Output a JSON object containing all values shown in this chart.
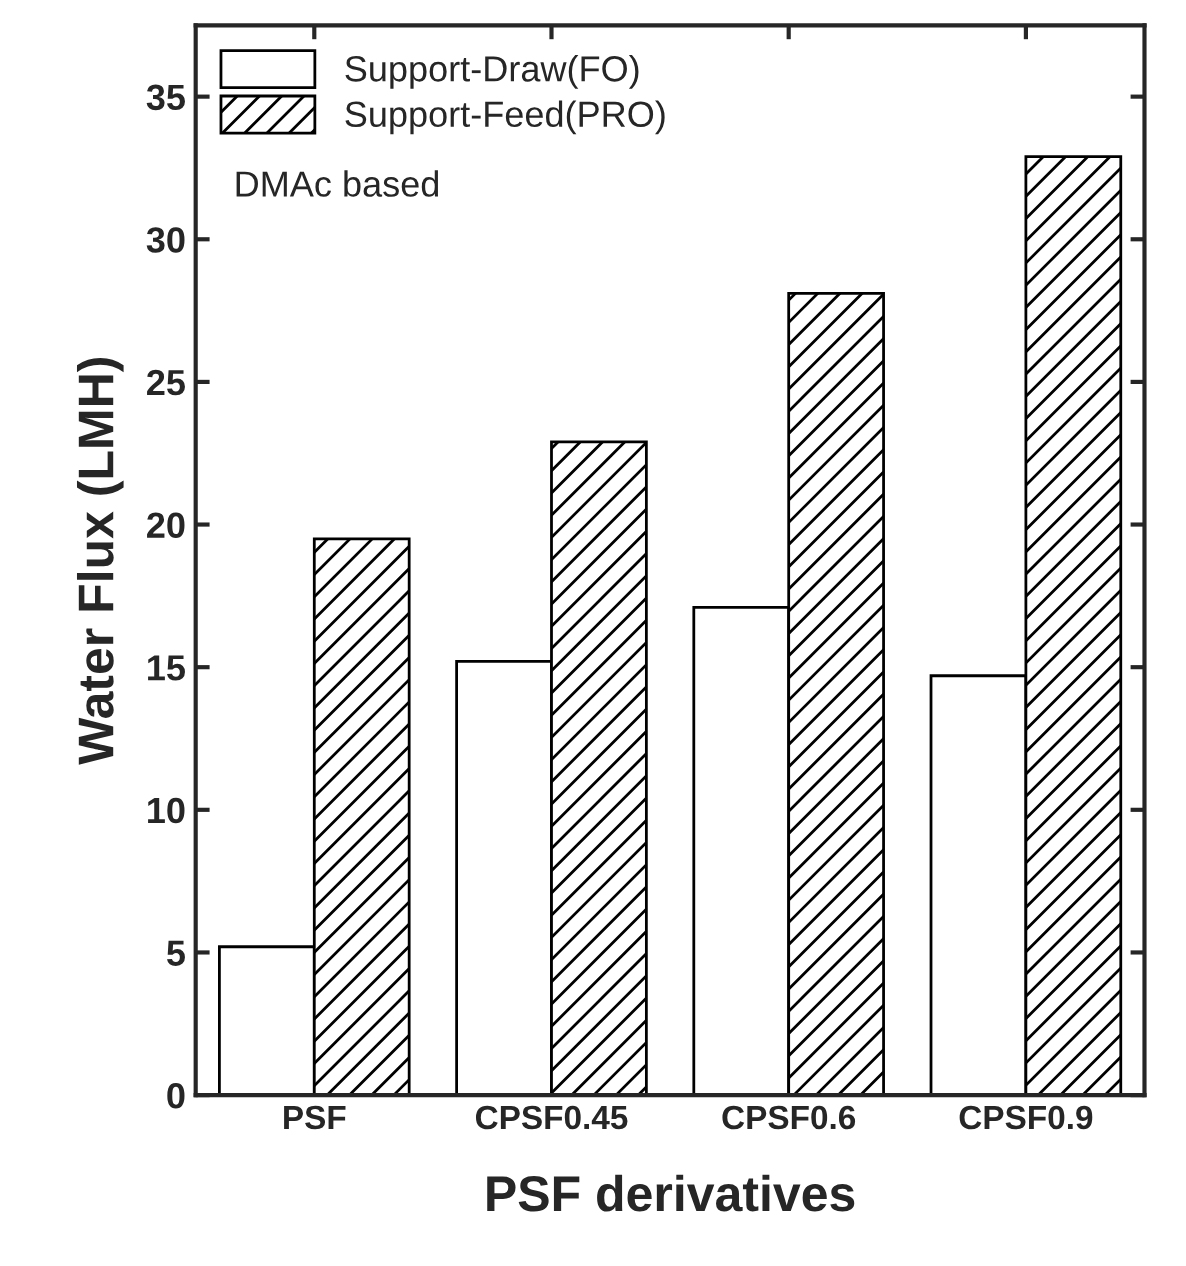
{
  "chart_data": {
    "type": "bar",
    "xlabel": "PSF derivatives",
    "ylabel": "Water Flux (LMH)",
    "categories": [
      "PSF",
      "CPSF0.45",
      "CPSF0.6",
      "CPSF0.9"
    ],
    "series": [
      {
        "name": "Support-Draw(FO)",
        "color": "#ffffff",
        "values": [
          5.2,
          15.2,
          17.1,
          14.7
        ]
      },
      {
        "name": "Support-Feed(PRO)",
        "color": "#000000",
        "values": [
          19.5,
          22.9,
          28.1,
          32.9
        ]
      }
    ],
    "ylim": [
      0,
      37.5
    ],
    "yticks": [
      0,
      5,
      10,
      15,
      20,
      25,
      30,
      35
    ],
    "annotations": [
      "DMAc based"
    ],
    "legend": "top left",
    "grid": false
  }
}
